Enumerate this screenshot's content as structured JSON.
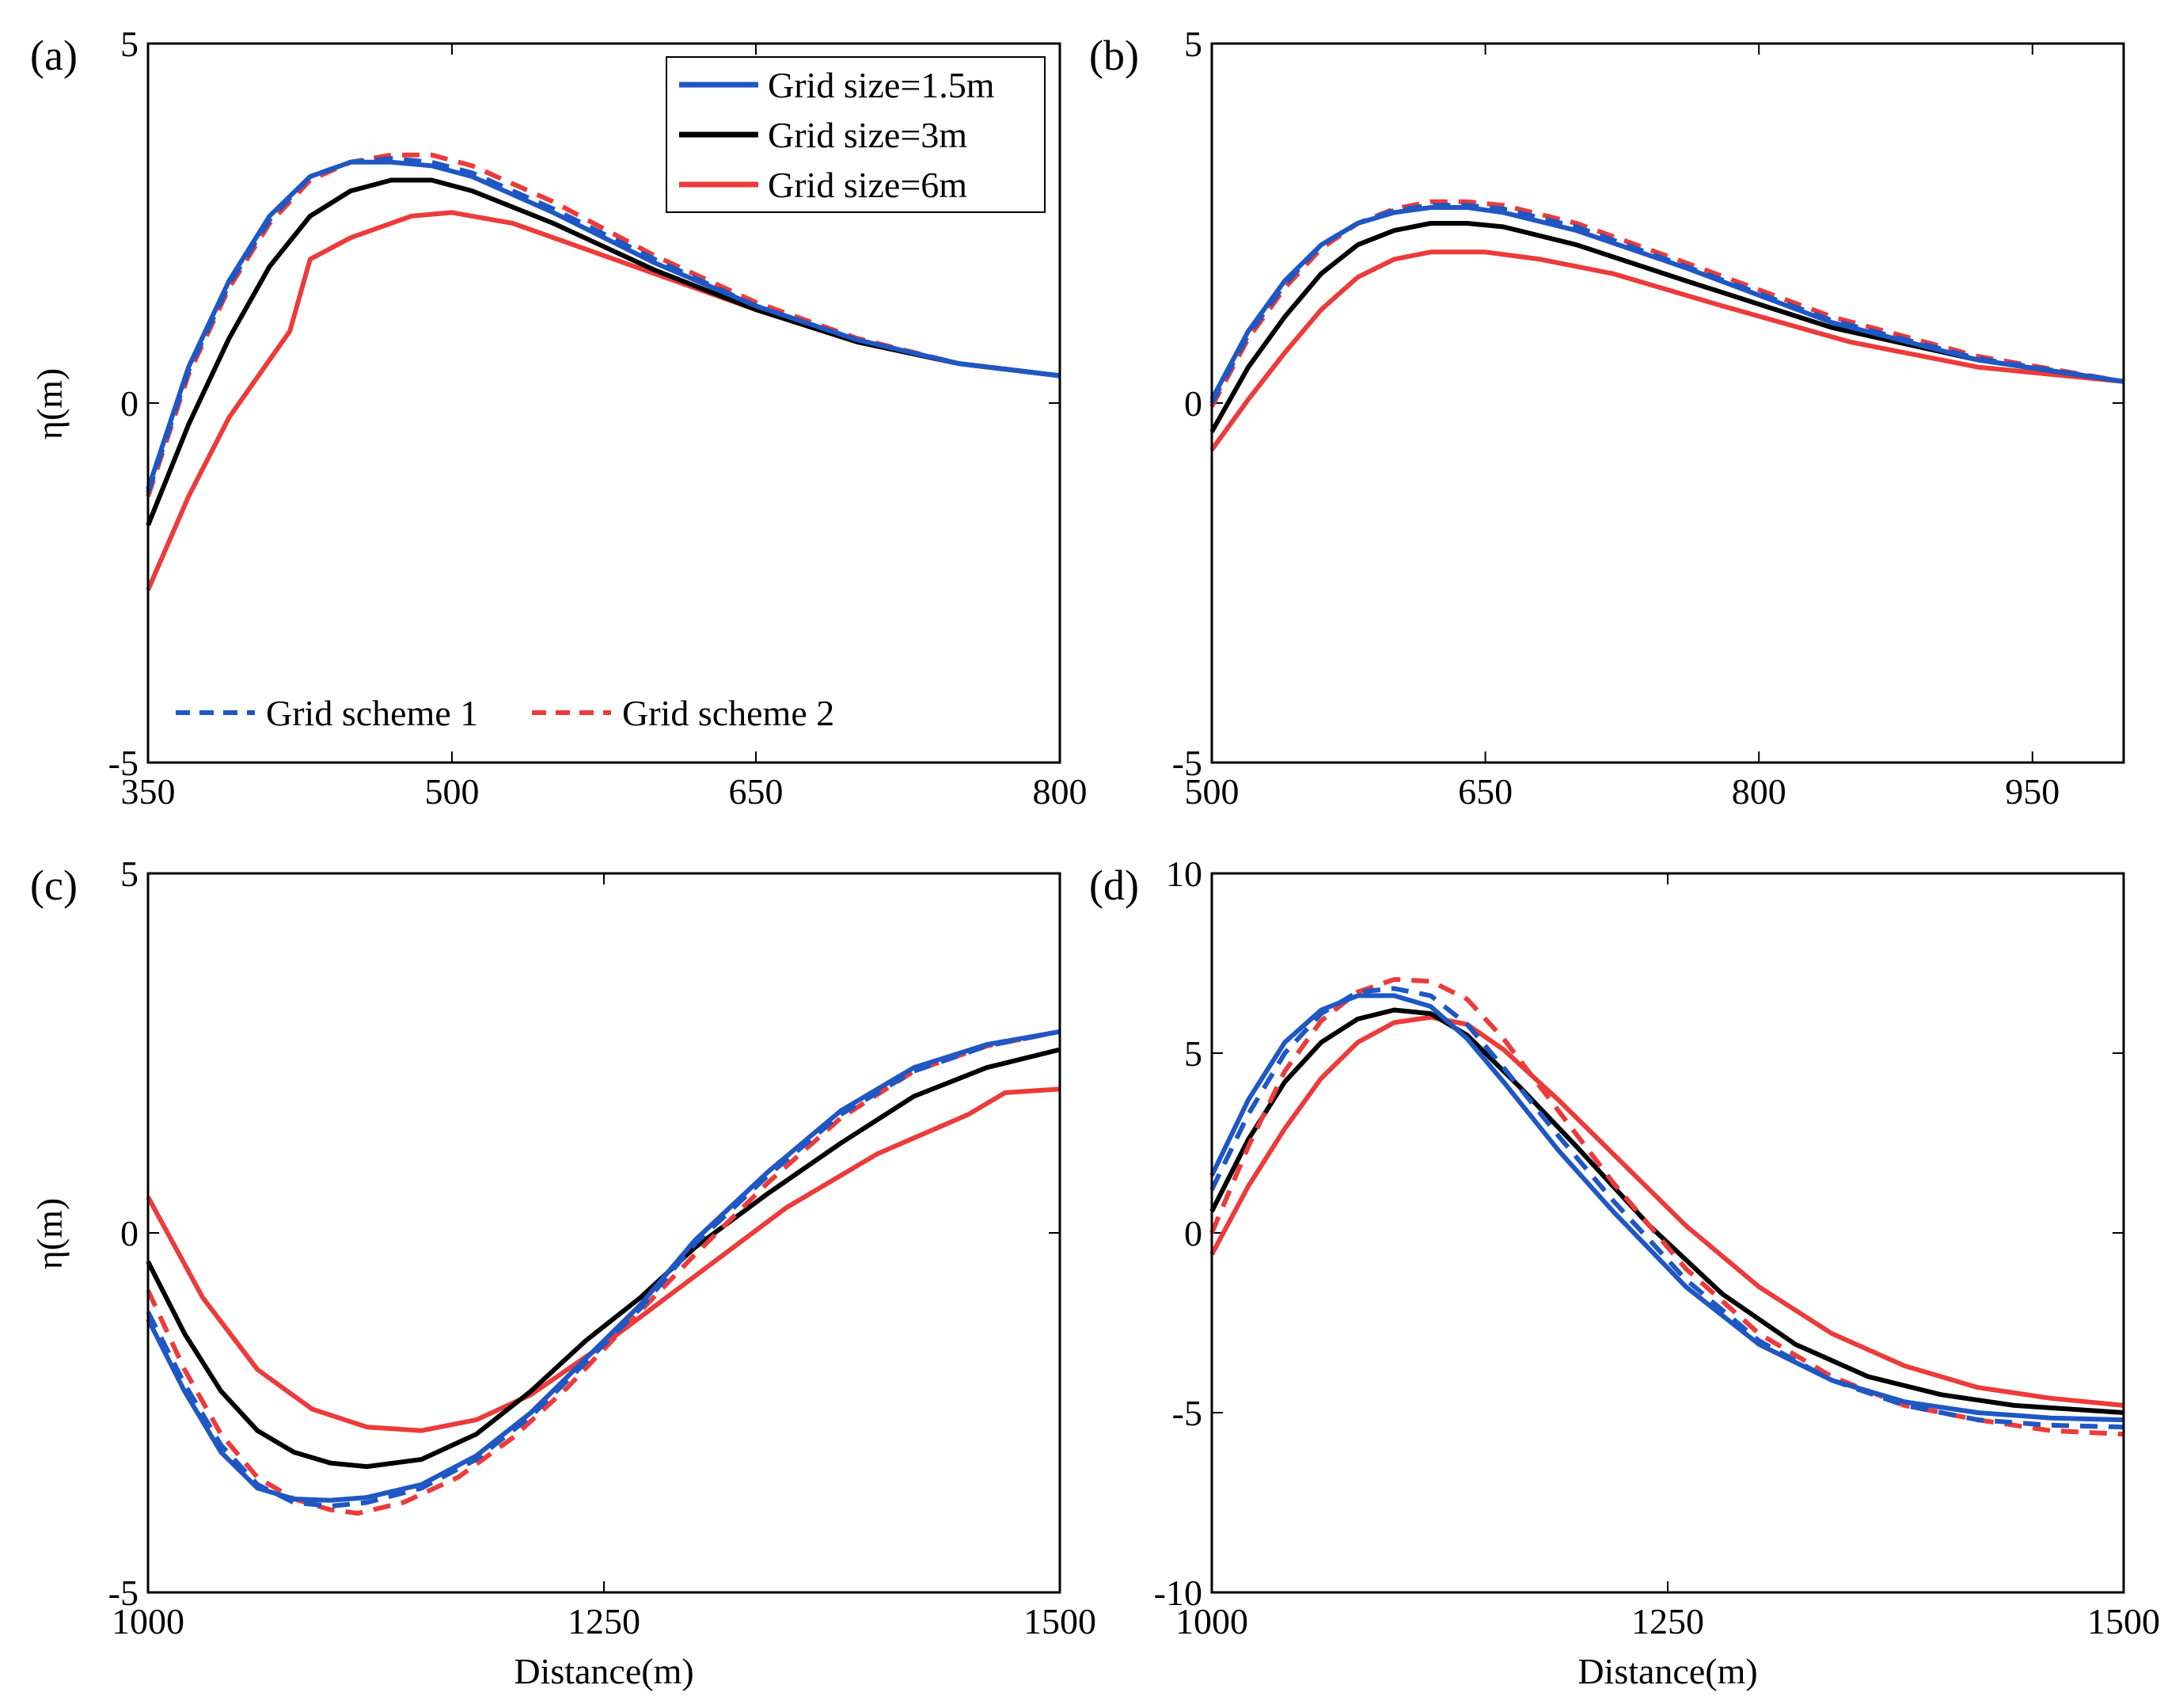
{
  "colors": {
    "grid_1_5m": "#1f57c3",
    "grid_3m": "#000000",
    "grid_6m": "#ec3b3b"
  },
  "legend_size": [
    {
      "name": "Grid size=1.5m",
      "color_key": "grid_1_5m"
    },
    {
      "name": "Grid size=3m",
      "color_key": "grid_3m"
    },
    {
      "name": "Grid size=6m",
      "color_key": "grid_6m"
    }
  ],
  "legend_scheme": [
    {
      "name": "Grid scheme 1",
      "color_key": "grid_1_5m"
    },
    {
      "name": "Grid scheme 2",
      "color_key": "grid_6m"
    }
  ],
  "chart_data": [
    {
      "type": "line",
      "panel": "(a)",
      "xlabel": "",
      "ylabel": "η(m)",
      "xlim": [
        350,
        800
      ],
      "ylim": [
        -5,
        5
      ],
      "xticks": [
        350,
        500,
        650,
        800
      ],
      "yticks": [
        -5,
        0,
        5
      ],
      "series": [
        {
          "color_key": "grid_6m",
          "style": "solid",
          "x": [
            350,
            370,
            390,
            410,
            420,
            430,
            450,
            480,
            500,
            530,
            560,
            600,
            650,
            700,
            750,
            800
          ],
          "y": [
            -2.6,
            -1.3,
            -0.2,
            0.6,
            1.0,
            2.0,
            2.3,
            2.6,
            2.65,
            2.5,
            2.2,
            1.8,
            1.3,
            0.85,
            0.55,
            0.38
          ]
        },
        {
          "color_key": "grid_3m",
          "style": "solid",
          "x": [
            350,
            370,
            390,
            410,
            430,
            450,
            470,
            490,
            510,
            550,
            600,
            650,
            700,
            750,
            800
          ],
          "y": [
            -1.7,
            -0.3,
            0.9,
            1.9,
            2.6,
            2.95,
            3.1,
            3.1,
            2.95,
            2.5,
            1.85,
            1.3,
            0.85,
            0.55,
            0.38
          ]
        },
        {
          "color_key": "grid_6m",
          "style": "dashed",
          "x": [
            350,
            370,
            390,
            410,
            430,
            450,
            470,
            490,
            510,
            550,
            600,
            650,
            700,
            750,
            800
          ],
          "y": [
            -1.3,
            0.4,
            1.6,
            2.5,
            3.1,
            3.35,
            3.45,
            3.45,
            3.3,
            2.8,
            2.05,
            1.4,
            0.9,
            0.55,
            0.38
          ]
        },
        {
          "color_key": "grid_1_5m",
          "style": "dashed",
          "x": [
            350,
            370,
            390,
            410,
            430,
            450,
            470,
            490,
            510,
            550,
            600,
            650,
            700,
            750,
            800
          ],
          "y": [
            -1.25,
            0.45,
            1.65,
            2.55,
            3.15,
            3.35,
            3.4,
            3.35,
            3.2,
            2.7,
            2.0,
            1.35,
            0.88,
            0.55,
            0.38
          ]
        },
        {
          "color_key": "grid_1_5m",
          "style": "solid",
          "x": [
            350,
            370,
            390,
            410,
            430,
            450,
            470,
            490,
            510,
            550,
            600,
            650,
            700,
            750,
            800
          ],
          "y": [
            -1.2,
            0.5,
            1.7,
            2.6,
            3.15,
            3.35,
            3.35,
            3.3,
            3.15,
            2.65,
            1.95,
            1.35,
            0.88,
            0.55,
            0.38
          ]
        }
      ]
    },
    {
      "type": "line",
      "panel": "(b)",
      "xlabel": "",
      "ylabel": "",
      "xlim": [
        500,
        1000
      ],
      "ylim": [
        -5,
        5
      ],
      "xticks": [
        500,
        650,
        800,
        950
      ],
      "yticks": [
        -5,
        0,
        5
      ],
      "series": [
        {
          "color_key": "grid_6m",
          "style": "solid",
          "x": [
            500,
            520,
            540,
            560,
            580,
            600,
            620,
            650,
            680,
            720,
            780,
            850,
            920,
            1000
          ],
          "y": [
            -0.65,
            0.05,
            0.7,
            1.3,
            1.75,
            2.0,
            2.1,
            2.1,
            2.0,
            1.8,
            1.35,
            0.85,
            0.5,
            0.3
          ]
        },
        {
          "color_key": "grid_3m",
          "style": "solid",
          "x": [
            500,
            520,
            540,
            560,
            580,
            600,
            620,
            640,
            660,
            700,
            760,
            840,
            920,
            1000
          ],
          "y": [
            -0.4,
            0.5,
            1.2,
            1.8,
            2.2,
            2.4,
            2.5,
            2.5,
            2.45,
            2.2,
            1.7,
            1.05,
            0.6,
            0.3
          ]
        },
        {
          "color_key": "grid_6m",
          "style": "dashed",
          "x": [
            500,
            520,
            540,
            560,
            580,
            600,
            620,
            640,
            660,
            700,
            760,
            840,
            920,
            1000
          ],
          "y": [
            -0.05,
            0.9,
            1.6,
            2.15,
            2.5,
            2.7,
            2.8,
            2.8,
            2.75,
            2.5,
            1.95,
            1.2,
            0.65,
            0.3
          ]
        },
        {
          "color_key": "grid_1_5m",
          "style": "dashed",
          "x": [
            500,
            520,
            540,
            560,
            580,
            600,
            620,
            640,
            660,
            700,
            760,
            840,
            920,
            1000
          ],
          "y": [
            0.0,
            0.95,
            1.65,
            2.2,
            2.5,
            2.68,
            2.75,
            2.75,
            2.7,
            2.45,
            1.9,
            1.15,
            0.62,
            0.3
          ]
        },
        {
          "color_key": "grid_1_5m",
          "style": "solid",
          "x": [
            500,
            520,
            540,
            560,
            580,
            600,
            620,
            640,
            660,
            700,
            760,
            840,
            920,
            1000
          ],
          "y": [
            0.05,
            1.0,
            1.7,
            2.2,
            2.5,
            2.65,
            2.72,
            2.72,
            2.65,
            2.4,
            1.88,
            1.12,
            0.6,
            0.3
          ]
        }
      ]
    },
    {
      "type": "line",
      "panel": "(c)",
      "xlabel": "Distance(m)",
      "ylabel": "η(m)",
      "xlim": [
        1000,
        1500
      ],
      "ylim": [
        -5,
        5
      ],
      "xticks": [
        1000,
        1250,
        1500
      ],
      "yticks": [
        -5,
        0,
        5
      ],
      "series": [
        {
          "color_key": "grid_6m",
          "style": "solid",
          "x": [
            1000,
            1030,
            1060,
            1090,
            1120,
            1150,
            1180,
            1210,
            1250,
            1300,
            1350,
            1400,
            1450,
            1470,
            1500
          ],
          "y": [
            0.5,
            -0.9,
            -1.9,
            -2.45,
            -2.7,
            -2.75,
            -2.6,
            -2.25,
            -1.55,
            -0.6,
            0.35,
            1.1,
            1.65,
            1.95,
            2.0
          ]
        },
        {
          "color_key": "grid_3m",
          "style": "solid",
          "x": [
            1000,
            1020,
            1040,
            1060,
            1080,
            1100,
            1120,
            1150,
            1180,
            1210,
            1240,
            1270,
            1300,
            1340,
            1380,
            1420,
            1460,
            1500
          ],
          "y": [
            -0.4,
            -1.4,
            -2.2,
            -2.75,
            -3.05,
            -3.2,
            -3.25,
            -3.15,
            -2.8,
            -2.2,
            -1.5,
            -0.9,
            -0.2,
            0.55,
            1.25,
            1.9,
            2.3,
            2.55
          ]
        },
        {
          "color_key": "grid_6m",
          "style": "dashed",
          "x": [
            1000,
            1020,
            1040,
            1060,
            1080,
            1100,
            1115,
            1140,
            1170,
            1200,
            1230,
            1260,
            1300,
            1340,
            1380,
            1420,
            1460,
            1500
          ],
          "y": [
            -0.8,
            -1.9,
            -2.8,
            -3.4,
            -3.7,
            -3.85,
            -3.9,
            -3.75,
            -3.4,
            -2.85,
            -2.15,
            -1.35,
            -0.3,
            0.7,
            1.6,
            2.25,
            2.6,
            2.8
          ]
        },
        {
          "color_key": "grid_1_5m",
          "style": "dashed",
          "x": [
            1000,
            1020,
            1040,
            1060,
            1080,
            1100,
            1120,
            1150,
            1180,
            1210,
            1240,
            1270,
            1300,
            1340,
            1380,
            1420,
            1460,
            1500
          ],
          "y": [
            -1.1,
            -2.1,
            -2.95,
            -3.5,
            -3.75,
            -3.8,
            -3.75,
            -3.55,
            -3.15,
            -2.55,
            -1.8,
            -1.05,
            -0.15,
            0.8,
            1.65,
            2.25,
            2.6,
            2.8
          ]
        },
        {
          "color_key": "grid_1_5m",
          "style": "solid",
          "x": [
            1000,
            1020,
            1040,
            1060,
            1080,
            1100,
            1120,
            1150,
            1180,
            1210,
            1240,
            1270,
            1300,
            1340,
            1380,
            1420,
            1460,
            1500
          ],
          "y": [
            -1.2,
            -2.2,
            -3.05,
            -3.55,
            -3.7,
            -3.72,
            -3.68,
            -3.5,
            -3.1,
            -2.5,
            -1.75,
            -1.0,
            -0.1,
            0.85,
            1.7,
            2.3,
            2.62,
            2.8
          ]
        }
      ]
    },
    {
      "type": "line",
      "panel": "(d)",
      "xlabel": "Distance(m)",
      "ylabel": "",
      "xlim": [
        1000,
        1500
      ],
      "ylim": [
        -10,
        10
      ],
      "xticks": [
        1000,
        1250,
        1500
      ],
      "yticks": [
        -10,
        -5,
        0,
        5,
        10
      ],
      "series": [
        {
          "color_key": "grid_6m",
          "style": "solid",
          "x": [
            1000,
            1020,
            1040,
            1060,
            1080,
            1100,
            1120,
            1140,
            1160,
            1190,
            1220,
            1260,
            1300,
            1340,
            1380,
            1420,
            1460,
            1500
          ],
          "y": [
            -0.6,
            1.3,
            2.9,
            4.3,
            5.3,
            5.85,
            6.0,
            5.8,
            5.1,
            3.7,
            2.2,
            0.2,
            -1.5,
            -2.8,
            -3.7,
            -4.3,
            -4.6,
            -4.8
          ]
        },
        {
          "color_key": "grid_3m",
          "style": "solid",
          "x": [
            1000,
            1020,
            1040,
            1060,
            1080,
            1100,
            1120,
            1140,
            1170,
            1200,
            1240,
            1280,
            1320,
            1360,
            1400,
            1440,
            1500
          ],
          "y": [
            0.6,
            2.6,
            4.2,
            5.3,
            5.95,
            6.2,
            6.1,
            5.5,
            4.0,
            2.4,
            0.2,
            -1.7,
            -3.1,
            -4.0,
            -4.5,
            -4.8,
            -5.0
          ]
        },
        {
          "color_key": "grid_6m",
          "style": "dashed",
          "x": [
            1000,
            1020,
            1040,
            1060,
            1080,
            1100,
            1120,
            1140,
            1160,
            1190,
            1220,
            1260,
            1300,
            1340,
            1380,
            1420,
            1460,
            1500
          ],
          "y": [
            0.0,
            2.4,
            4.5,
            5.9,
            6.7,
            7.05,
            7.0,
            6.5,
            5.4,
            3.4,
            1.4,
            -1.0,
            -2.8,
            -4.0,
            -4.8,
            -5.2,
            -5.5,
            -5.6
          ]
        },
        {
          "color_key": "grid_1_5m",
          "style": "dashed",
          "x": [
            1000,
            1020,
            1040,
            1060,
            1080,
            1100,
            1120,
            1140,
            1160,
            1190,
            1220,
            1260,
            1300,
            1340,
            1380,
            1420,
            1460,
            1500
          ],
          "y": [
            1.2,
            3.3,
            5.0,
            6.1,
            6.7,
            6.8,
            6.6,
            5.8,
            4.6,
            2.7,
            0.9,
            -1.3,
            -3.0,
            -4.1,
            -4.8,
            -5.2,
            -5.35,
            -5.4
          ]
        },
        {
          "color_key": "grid_1_5m",
          "style": "solid",
          "x": [
            1000,
            1020,
            1040,
            1060,
            1080,
            1100,
            1120,
            1140,
            1160,
            1190,
            1220,
            1260,
            1300,
            1340,
            1380,
            1420,
            1460,
            1500
          ],
          "y": [
            1.6,
            3.7,
            5.3,
            6.2,
            6.6,
            6.6,
            6.3,
            5.4,
            4.2,
            2.3,
            0.6,
            -1.5,
            -3.1,
            -4.1,
            -4.7,
            -5.0,
            -5.15,
            -5.2
          ]
        }
      ]
    }
  ]
}
